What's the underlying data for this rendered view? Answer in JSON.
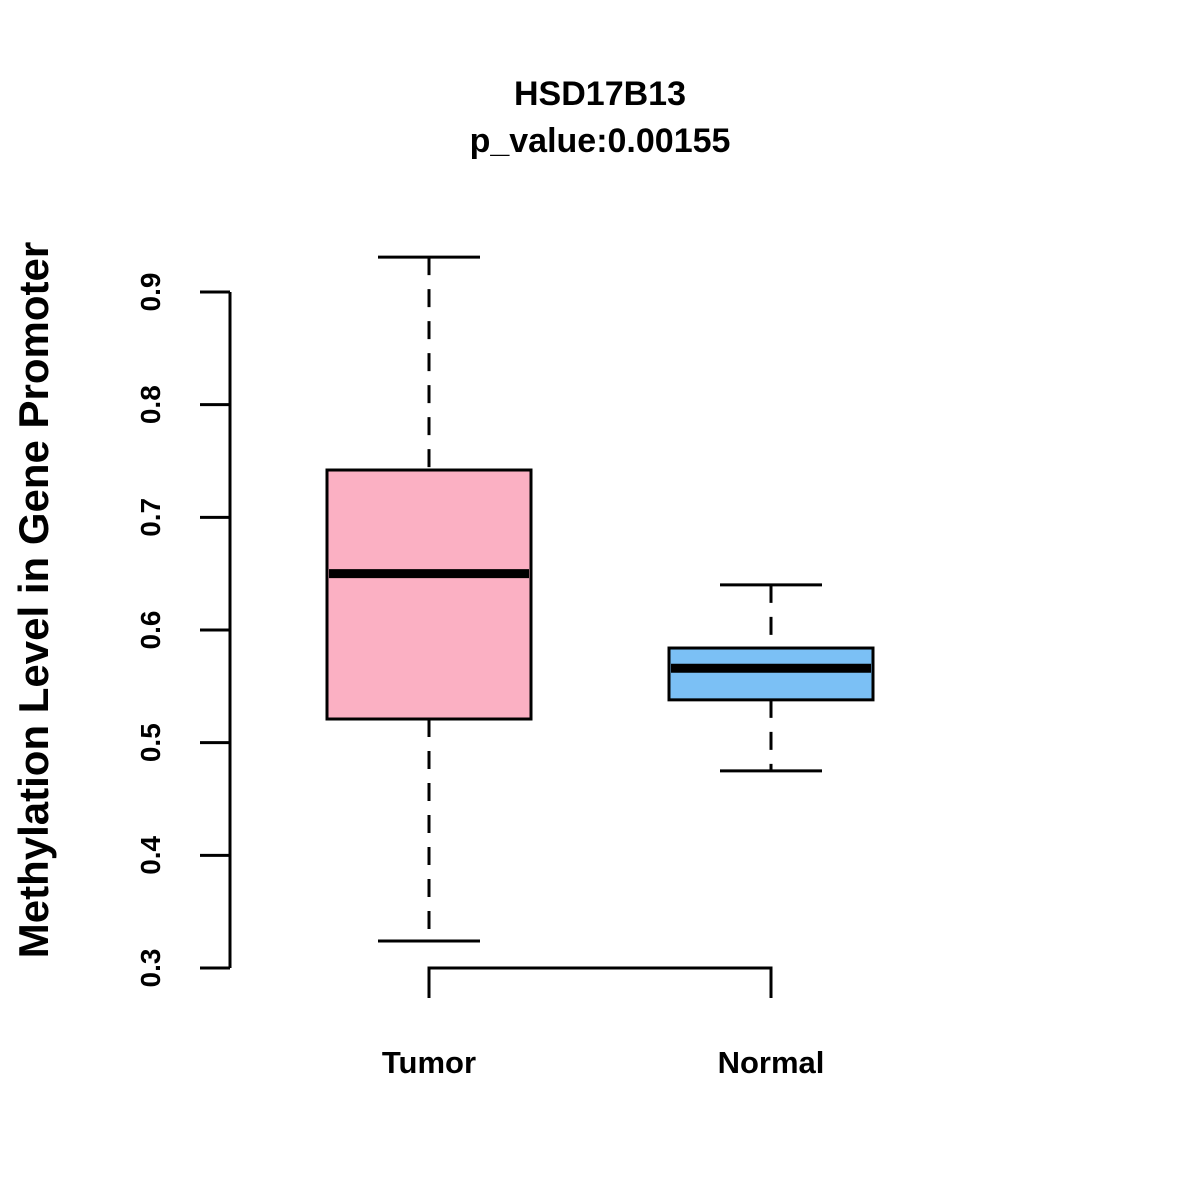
{
  "chart_data": {
    "type": "boxplot",
    "title": "HSD17B13",
    "subtitle": "p_value:0.00155",
    "xlabel": "",
    "ylabel": "Methylation Level in Gene Promoter",
    "ylim": [
      0.3,
      0.9
    ],
    "yticks": [
      "0.3",
      "0.4",
      "0.5",
      "0.6",
      "0.7",
      "0.8",
      "0.9"
    ],
    "categories": [
      "Tumor",
      "Normal"
    ],
    "boxes": [
      {
        "name": "Tumor",
        "whisker_low": 0.324,
        "q1": 0.521,
        "median": 0.65,
        "q3": 0.742,
        "whisker_high": 0.931,
        "color": "#FBB0C3"
      },
      {
        "name": "Normal",
        "whisker_low": 0.475,
        "q1": 0.538,
        "median": 0.566,
        "q3": 0.584,
        "whisker_high": 0.64,
        "color": "#7BC0F5"
      }
    ]
  }
}
